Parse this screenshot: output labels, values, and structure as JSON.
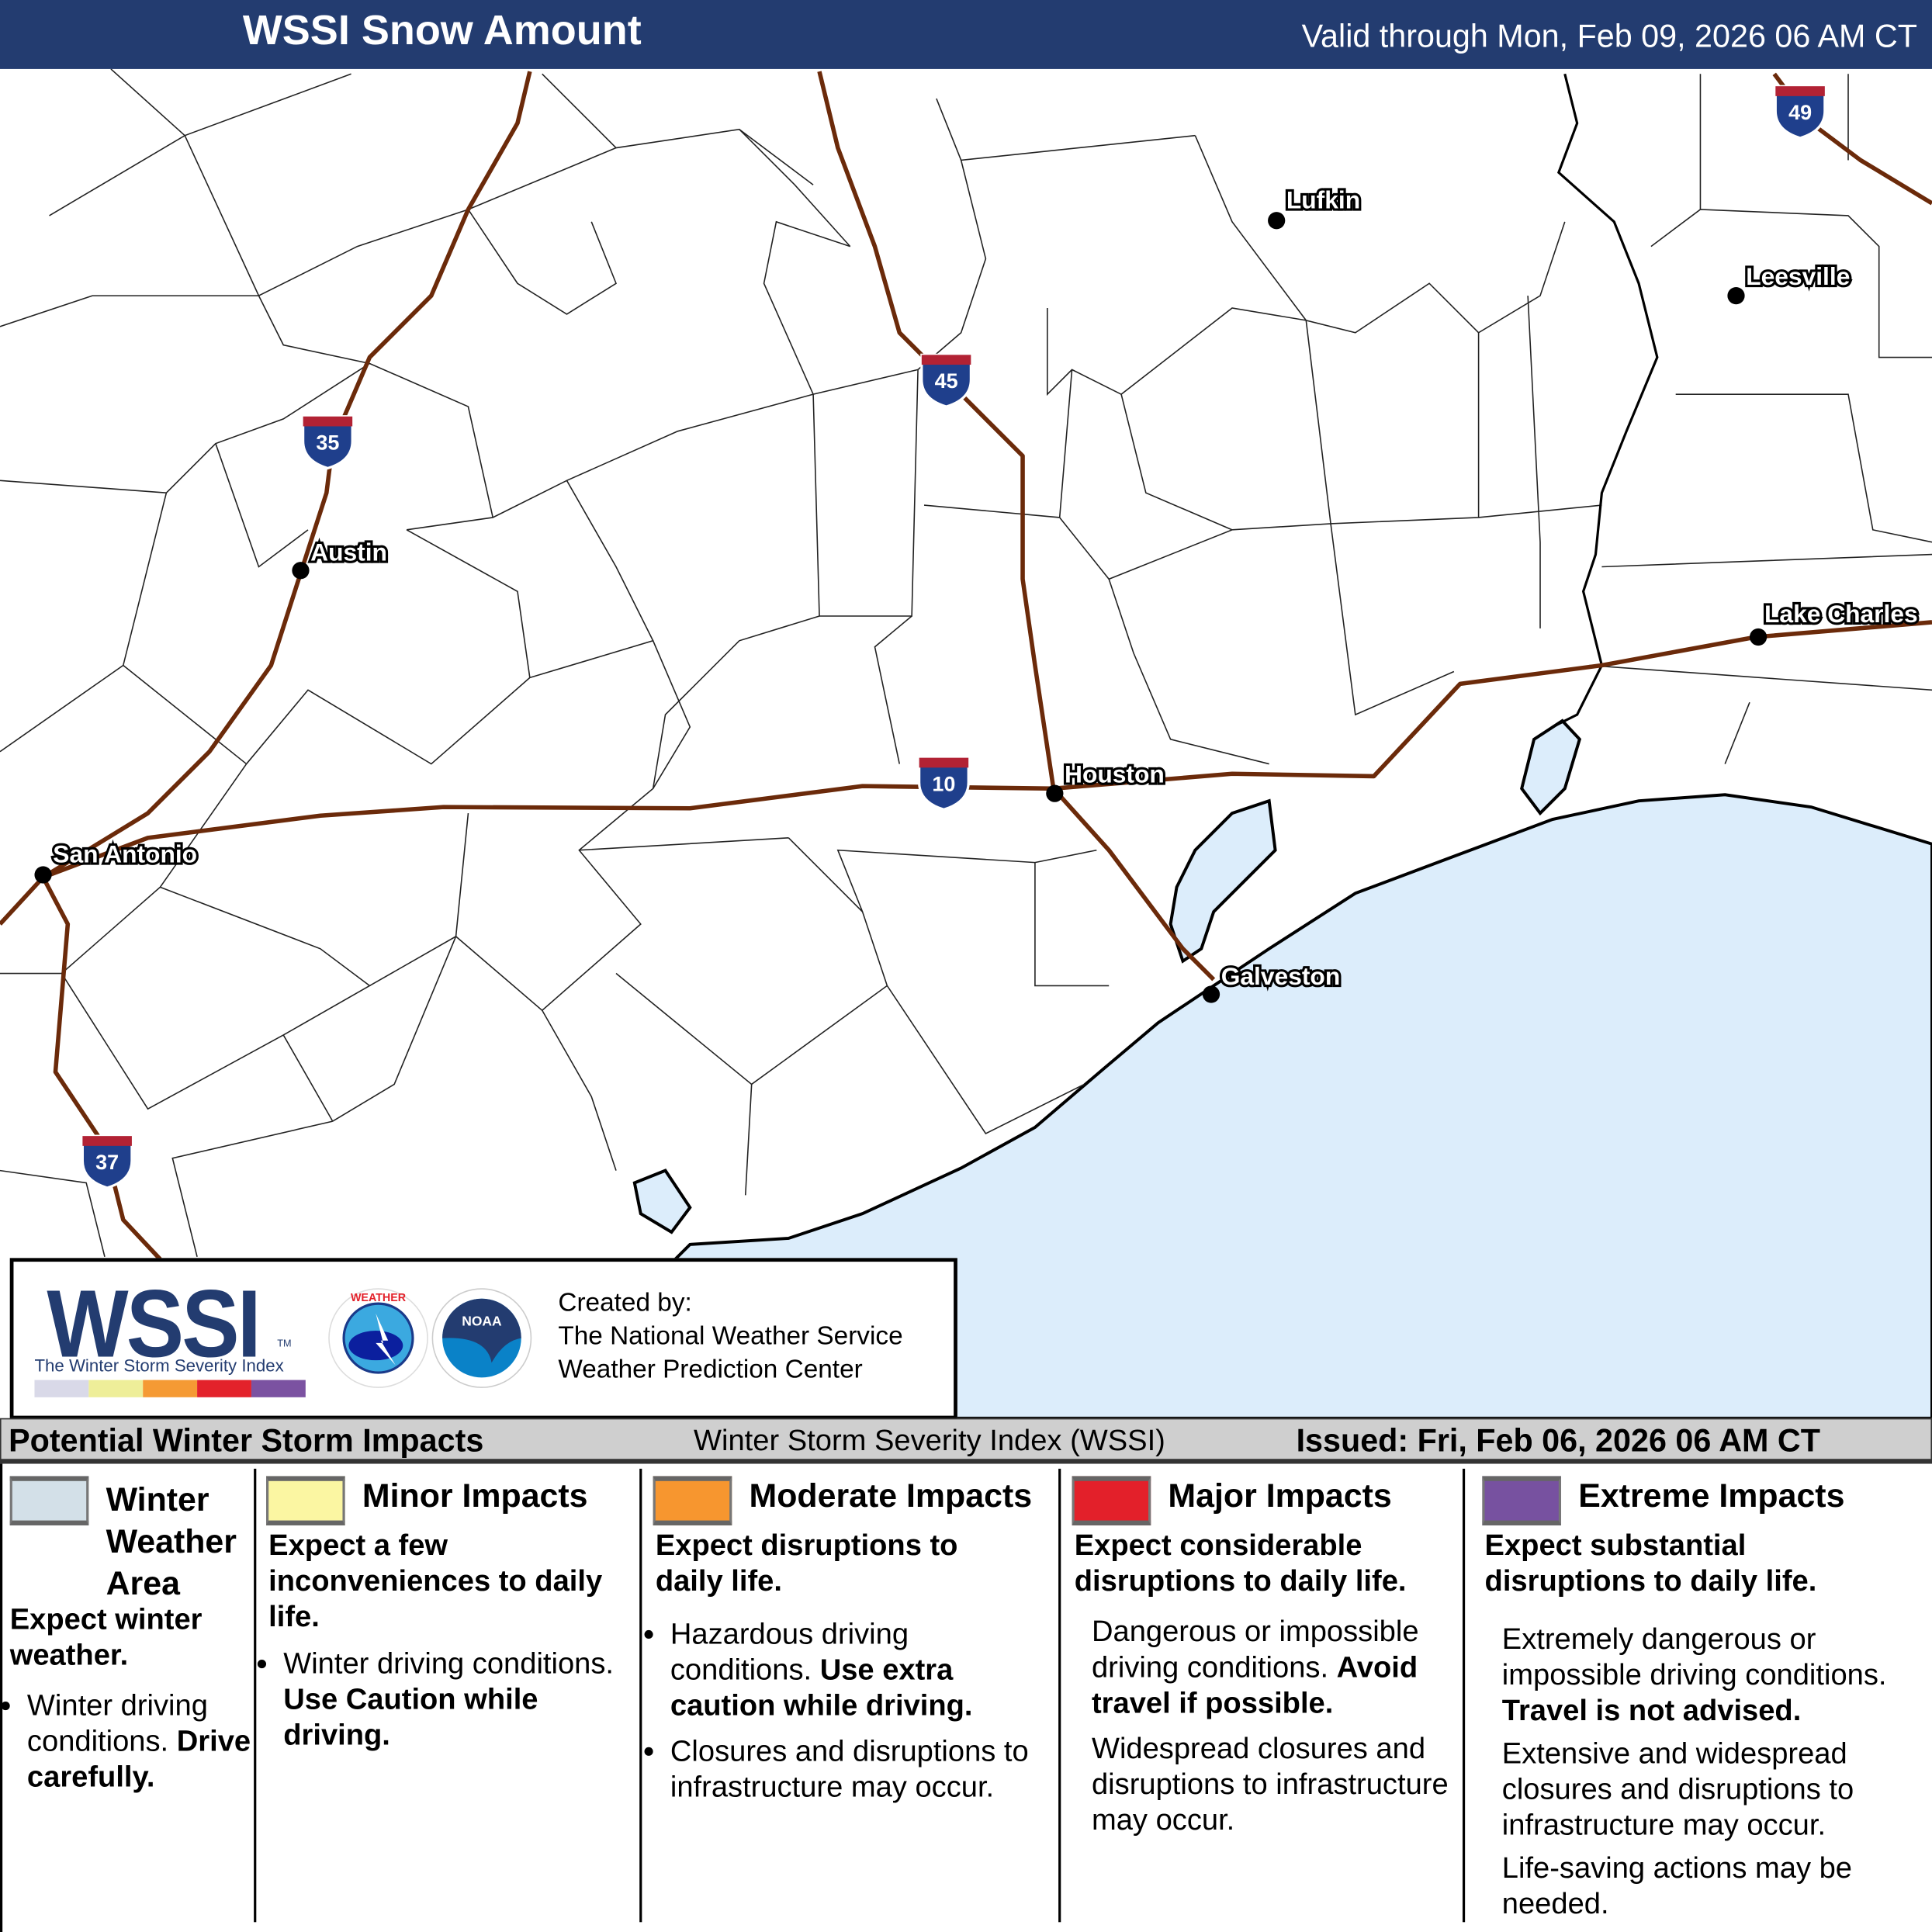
{
  "header": {
    "title": "WSSI Snow Amount",
    "valid": "Valid through Mon, Feb 09, 2026 06 AM CT"
  },
  "map": {
    "colors": {
      "water": "#dcedfb",
      "highway": "#6b2a0a",
      "shield_blue": "#1f3f8c",
      "shield_red": "#b22234"
    },
    "cities": [
      {
        "name": "Lufkin"
      },
      {
        "name": "Leesville"
      },
      {
        "name": "Austin"
      },
      {
        "name": "Lake Charles"
      },
      {
        "name": "Houston"
      },
      {
        "name": "San Antonio"
      },
      {
        "name": "Galveston"
      }
    ],
    "interstates": [
      "49",
      "45",
      "35",
      "10",
      "37"
    ]
  },
  "logo": {
    "wssi": "WSSI",
    "tm": "TM",
    "subtitle": "The Winter Storm Severity Index",
    "nws_seal": "NATIONAL WEATHER SERVICE",
    "noaa_seal": "NOAA",
    "created_by": "Created by:",
    "org1": "The National Weather Service",
    "org2": "Weather Prediction Center",
    "scale_colors": [
      "#d9d9e8",
      "#eeee99",
      "#f59a34",
      "#e3222b",
      "#7b52a1"
    ]
  },
  "legend": {
    "title": "Potential Winter Storm Impacts",
    "index_name": "Winter Storm Severity Index (WSSI)",
    "issued": "Issued: Fri, Feb 06, 2026 06 AM CT",
    "categories": [
      {
        "name": "Winter Weather Area",
        "color": "#d3e0e8",
        "summary": "Expect winter weather.",
        "bullet1": "Winter driving conditions.",
        "bullet1_bold": "Drive carefully."
      },
      {
        "name": "Minor Impacts",
        "color": "#fbf6a2",
        "summary": "Expect a few inconveniences to daily life.",
        "bullet1": "Winter driving conditions.",
        "bullet1_bold": "Use Caution while driving."
      },
      {
        "name": "Moderate Impacts",
        "color": "#f7962f",
        "summary": "Expect disruptions to daily life.",
        "bullet1": "Hazardous driving conditions.",
        "bullet1_bold": "Use extra caution while driving.",
        "bullet2": "Closures and disruptions to infrastructure may occur."
      },
      {
        "name": "Major Impacts",
        "color": "#e3202a",
        "summary": "Expect considerable disruptions to daily life.",
        "bullet1": "Dangerous or impossible driving conditions.",
        "bullet1_bold": "Avoid travel if possible.",
        "bullet2": "Widespread closures and disruptions to infrastructure may occur."
      },
      {
        "name": "Extreme Impacts",
        "color": "#7751a0",
        "summary": "Expect substantial disruptions to daily life.",
        "bullet1": "Extremely dangerous or impossible driving conditions.",
        "bullet1_bold": "Travel is not advised.",
        "bullet2": "Extensive and widespread closures and disruptions to infrastructure may occur.",
        "bullet3": "Life-saving actions may be needed."
      }
    ]
  }
}
